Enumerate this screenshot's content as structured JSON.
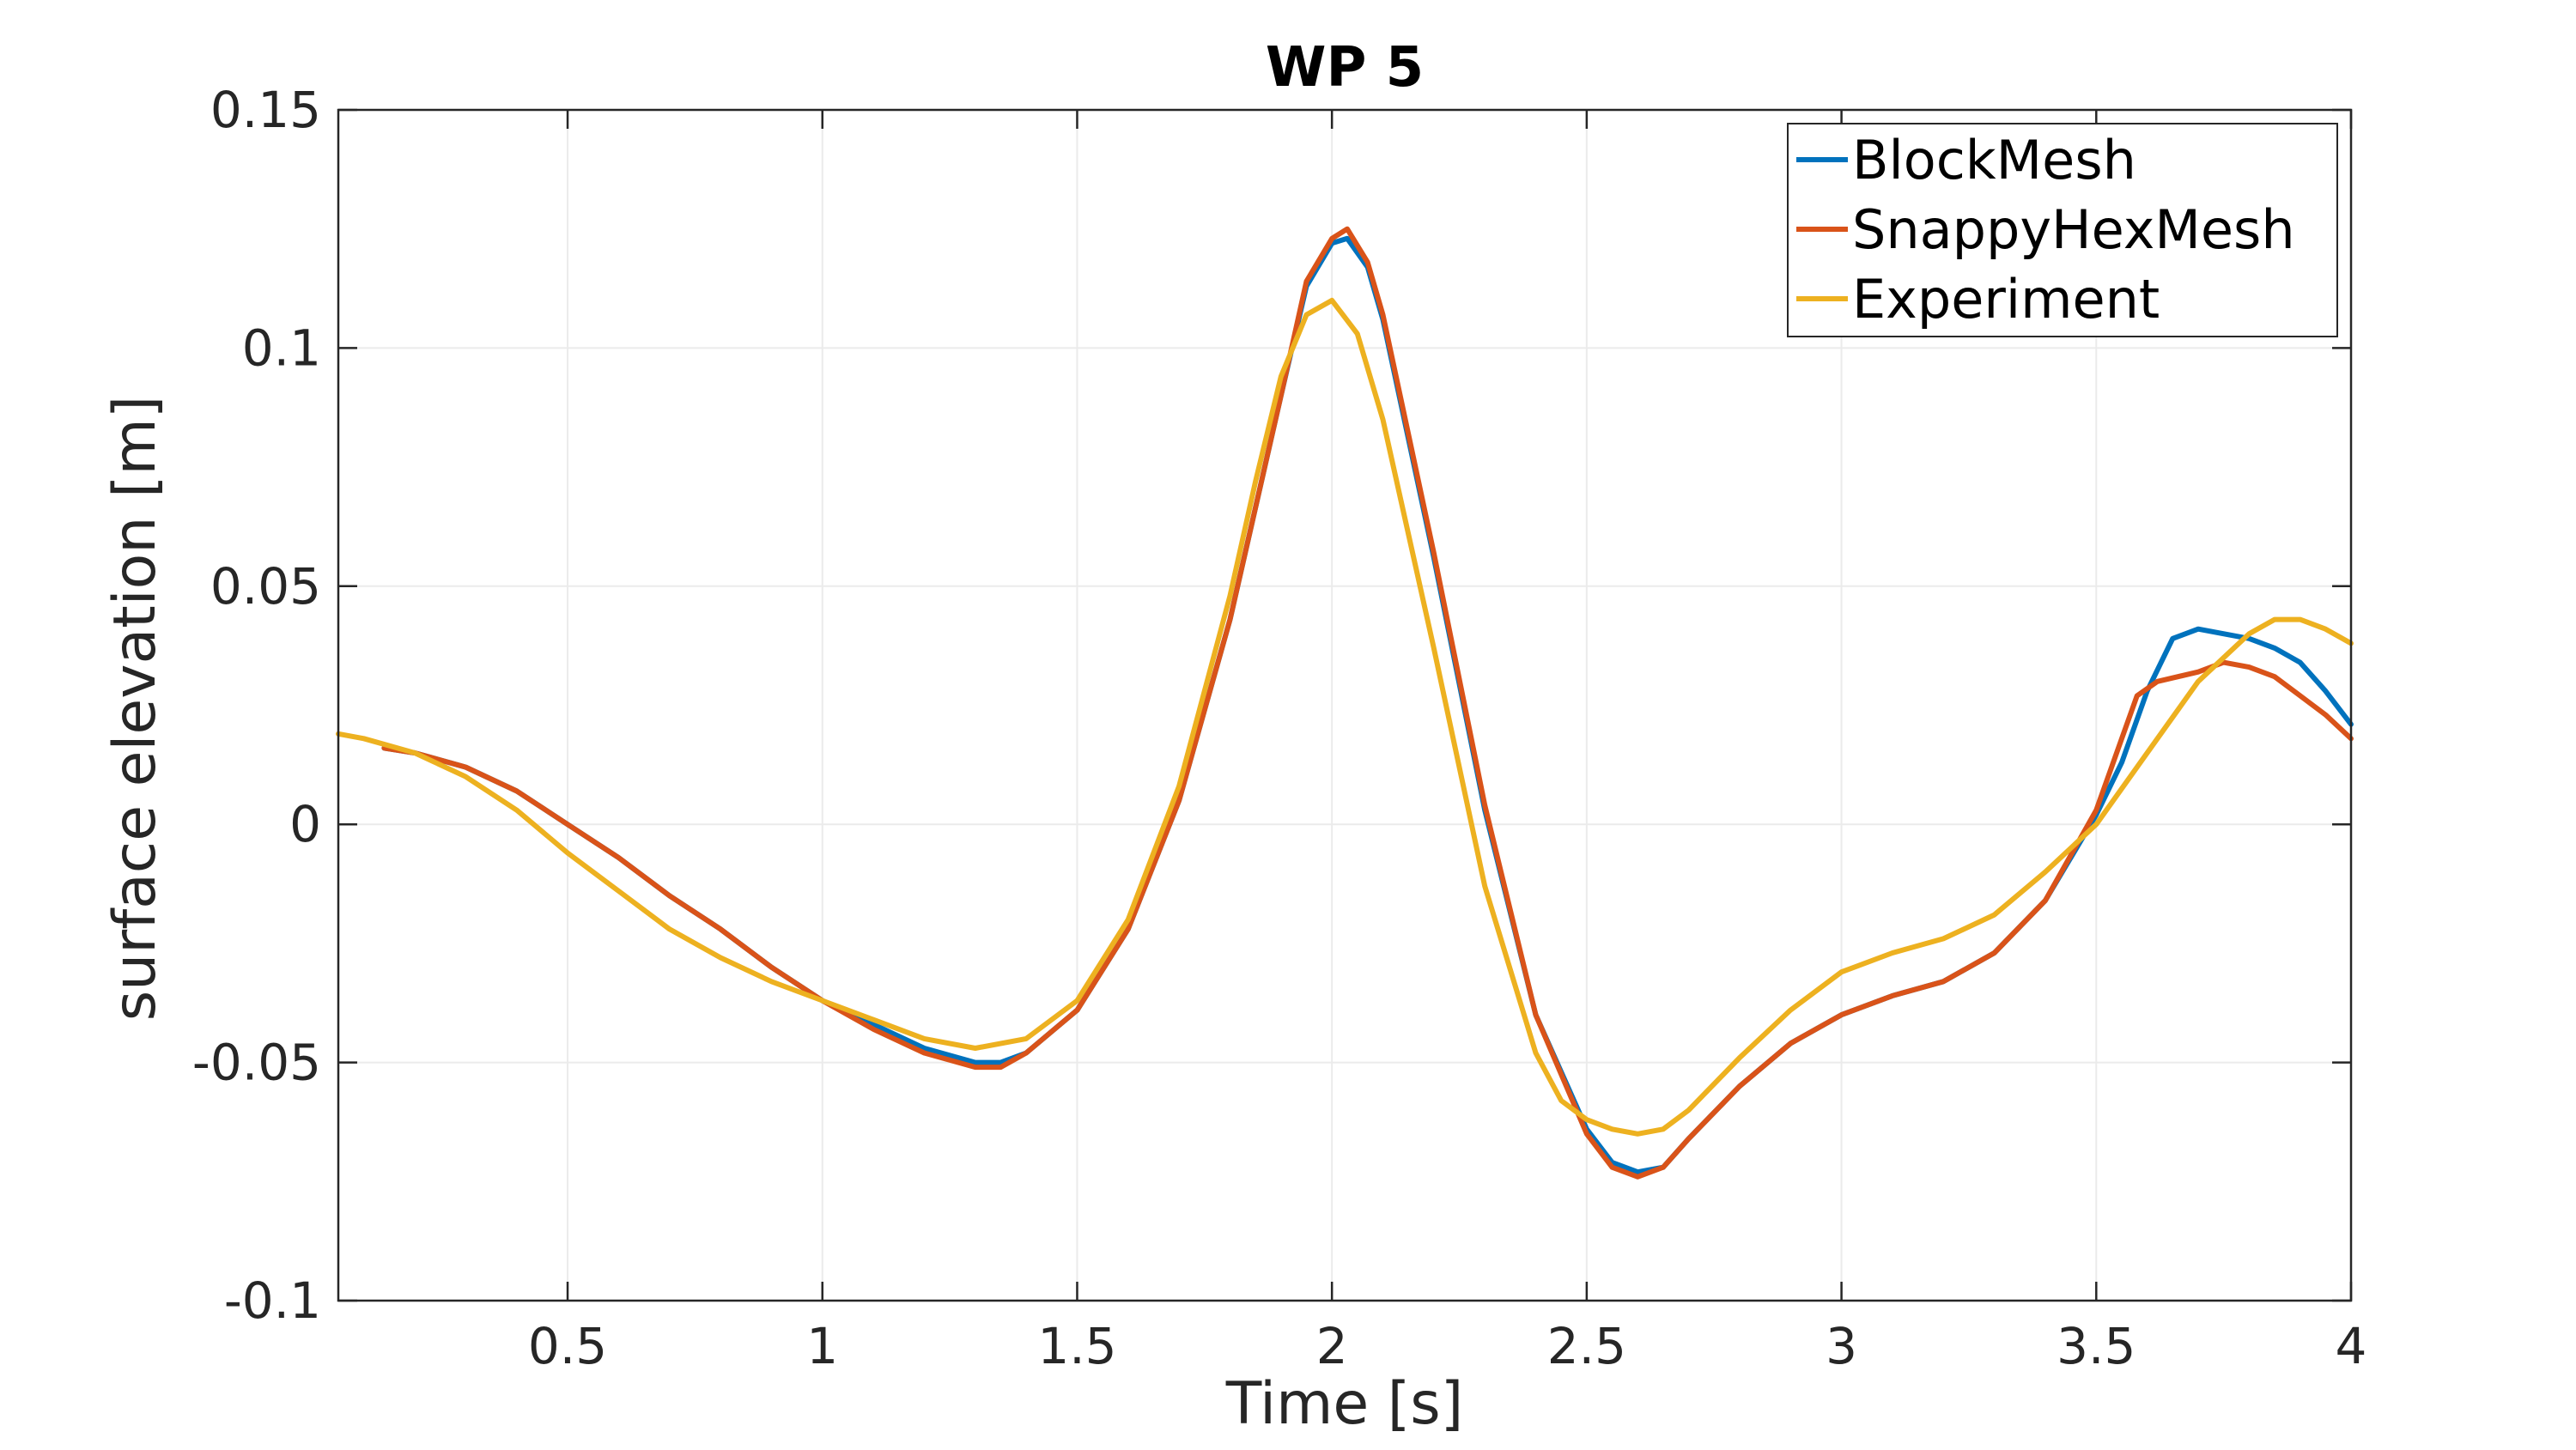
{
  "chart_data": {
    "type": "line",
    "title": "WP 5",
    "xlabel": "Time [s]",
    "ylabel": "surface elevation [m]",
    "xlim": [
      0.05,
      4
    ],
    "ylim": [
      -0.1,
      0.15
    ],
    "xticks": [
      0.5,
      1,
      1.5,
      2,
      2.5,
      3,
      3.5,
      4
    ],
    "xtick_labels": [
      "0.5",
      "1",
      "1.5",
      "2",
      "2.5",
      "3",
      "3.5",
      "4"
    ],
    "yticks": [
      -0.1,
      -0.05,
      0,
      0.05,
      0.1,
      0.15
    ],
    "ytick_labels": [
      "-0.1",
      "-0.05",
      "0",
      "0.05",
      "0.1",
      "0.15"
    ],
    "grid": true,
    "legend_position": "top-right",
    "series": [
      {
        "name": "BlockMesh",
        "color": "#0072bd",
        "points": [
          [
            0.14,
            0.016
          ],
          [
            0.2,
            0.015
          ],
          [
            0.3,
            0.012
          ],
          [
            0.4,
            0.007
          ],
          [
            0.5,
            0.0
          ],
          [
            0.6,
            -0.007
          ],
          [
            0.7,
            -0.015
          ],
          [
            0.8,
            -0.022
          ],
          [
            0.9,
            -0.03
          ],
          [
            1.0,
            -0.037
          ],
          [
            1.1,
            -0.042
          ],
          [
            1.2,
            -0.047
          ],
          [
            1.3,
            -0.05
          ],
          [
            1.35,
            -0.05
          ],
          [
            1.4,
            -0.048
          ],
          [
            1.5,
            -0.039
          ],
          [
            1.6,
            -0.022
          ],
          [
            1.7,
            0.005
          ],
          [
            1.8,
            0.043
          ],
          [
            1.9,
            0.09
          ],
          [
            1.95,
            0.113
          ],
          [
            2.0,
            0.122
          ],
          [
            2.03,
            0.123
          ],
          [
            2.07,
            0.117
          ],
          [
            2.1,
            0.106
          ],
          [
            2.2,
            0.056
          ],
          [
            2.3,
            0.003
          ],
          [
            2.4,
            -0.04
          ],
          [
            2.5,
            -0.064
          ],
          [
            2.55,
            -0.071
          ],
          [
            2.6,
            -0.073
          ],
          [
            2.65,
            -0.072
          ],
          [
            2.7,
            -0.066
          ],
          [
            2.8,
            -0.055
          ],
          [
            2.9,
            -0.046
          ],
          [
            3.0,
            -0.04
          ],
          [
            3.1,
            -0.036
          ],
          [
            3.2,
            -0.033
          ],
          [
            3.3,
            -0.027
          ],
          [
            3.4,
            -0.016
          ],
          [
            3.5,
            0.002
          ],
          [
            3.55,
            0.013
          ],
          [
            3.6,
            0.028
          ],
          [
            3.65,
            0.039
          ],
          [
            3.7,
            0.041
          ],
          [
            3.8,
            0.039
          ],
          [
            3.85,
            0.037
          ],
          [
            3.9,
            0.034
          ],
          [
            3.95,
            0.028
          ],
          [
            4.0,
            0.021
          ]
        ]
      },
      {
        "name": "SnappyHexMesh",
        "color": "#d95319",
        "points": [
          [
            0.14,
            0.016
          ],
          [
            0.2,
            0.015
          ],
          [
            0.3,
            0.012
          ],
          [
            0.4,
            0.007
          ],
          [
            0.5,
            0.0
          ],
          [
            0.6,
            -0.007
          ],
          [
            0.7,
            -0.015
          ],
          [
            0.8,
            -0.022
          ],
          [
            0.9,
            -0.03
          ],
          [
            1.0,
            -0.037
          ],
          [
            1.1,
            -0.043
          ],
          [
            1.2,
            -0.048
          ],
          [
            1.3,
            -0.051
          ],
          [
            1.35,
            -0.051
          ],
          [
            1.4,
            -0.048
          ],
          [
            1.5,
            -0.039
          ],
          [
            1.6,
            -0.022
          ],
          [
            1.7,
            0.005
          ],
          [
            1.8,
            0.043
          ],
          [
            1.9,
            0.09
          ],
          [
            1.95,
            0.114
          ],
          [
            2.0,
            0.123
          ],
          [
            2.03,
            0.125
          ],
          [
            2.07,
            0.118
          ],
          [
            2.1,
            0.107
          ],
          [
            2.2,
            0.057
          ],
          [
            2.3,
            0.004
          ],
          [
            2.4,
            -0.04
          ],
          [
            2.5,
            -0.065
          ],
          [
            2.55,
            -0.072
          ],
          [
            2.6,
            -0.074
          ],
          [
            2.65,
            -0.072
          ],
          [
            2.7,
            -0.066
          ],
          [
            2.8,
            -0.055
          ],
          [
            2.9,
            -0.046
          ],
          [
            3.0,
            -0.04
          ],
          [
            3.1,
            -0.036
          ],
          [
            3.2,
            -0.033
          ],
          [
            3.3,
            -0.027
          ],
          [
            3.4,
            -0.016
          ],
          [
            3.5,
            0.003
          ],
          [
            3.55,
            0.018
          ],
          [
            3.58,
            0.027
          ],
          [
            3.62,
            0.03
          ],
          [
            3.7,
            0.032
          ],
          [
            3.75,
            0.034
          ],
          [
            3.8,
            0.033
          ],
          [
            3.85,
            0.031
          ],
          [
            3.9,
            0.027
          ],
          [
            3.95,
            0.023
          ],
          [
            4.0,
            0.018
          ]
        ]
      },
      {
        "name": "Experiment",
        "color": "#edb120",
        "points": [
          [
            0.05,
            0.019
          ],
          [
            0.1,
            0.018
          ],
          [
            0.2,
            0.015
          ],
          [
            0.3,
            0.01
          ],
          [
            0.4,
            0.003
          ],
          [
            0.5,
            -0.006
          ],
          [
            0.6,
            -0.014
          ],
          [
            0.7,
            -0.022
          ],
          [
            0.8,
            -0.028
          ],
          [
            0.9,
            -0.033
          ],
          [
            1.0,
            -0.037
          ],
          [
            1.1,
            -0.041
          ],
          [
            1.2,
            -0.045
          ],
          [
            1.3,
            -0.047
          ],
          [
            1.4,
            -0.045
          ],
          [
            1.5,
            -0.037
          ],
          [
            1.6,
            -0.02
          ],
          [
            1.7,
            0.008
          ],
          [
            1.8,
            0.048
          ],
          [
            1.85,
            0.072
          ],
          [
            1.9,
            0.094
          ],
          [
            1.95,
            0.107
          ],
          [
            2.0,
            0.11
          ],
          [
            2.05,
            0.103
          ],
          [
            2.1,
            0.085
          ],
          [
            2.2,
            0.037
          ],
          [
            2.3,
            -0.013
          ],
          [
            2.4,
            -0.048
          ],
          [
            2.45,
            -0.058
          ],
          [
            2.5,
            -0.062
          ],
          [
            2.55,
            -0.064
          ],
          [
            2.6,
            -0.065
          ],
          [
            2.65,
            -0.064
          ],
          [
            2.7,
            -0.06
          ],
          [
            2.8,
            -0.049
          ],
          [
            2.9,
            -0.039
          ],
          [
            3.0,
            -0.031
          ],
          [
            3.1,
            -0.027
          ],
          [
            3.2,
            -0.024
          ],
          [
            3.3,
            -0.019
          ],
          [
            3.4,
            -0.01
          ],
          [
            3.5,
            0.0
          ],
          [
            3.6,
            0.015
          ],
          [
            3.7,
            0.03
          ],
          [
            3.8,
            0.04
          ],
          [
            3.85,
            0.043
          ],
          [
            3.9,
            0.043
          ],
          [
            3.95,
            0.041
          ],
          [
            4.0,
            0.038
          ]
        ]
      }
    ]
  }
}
